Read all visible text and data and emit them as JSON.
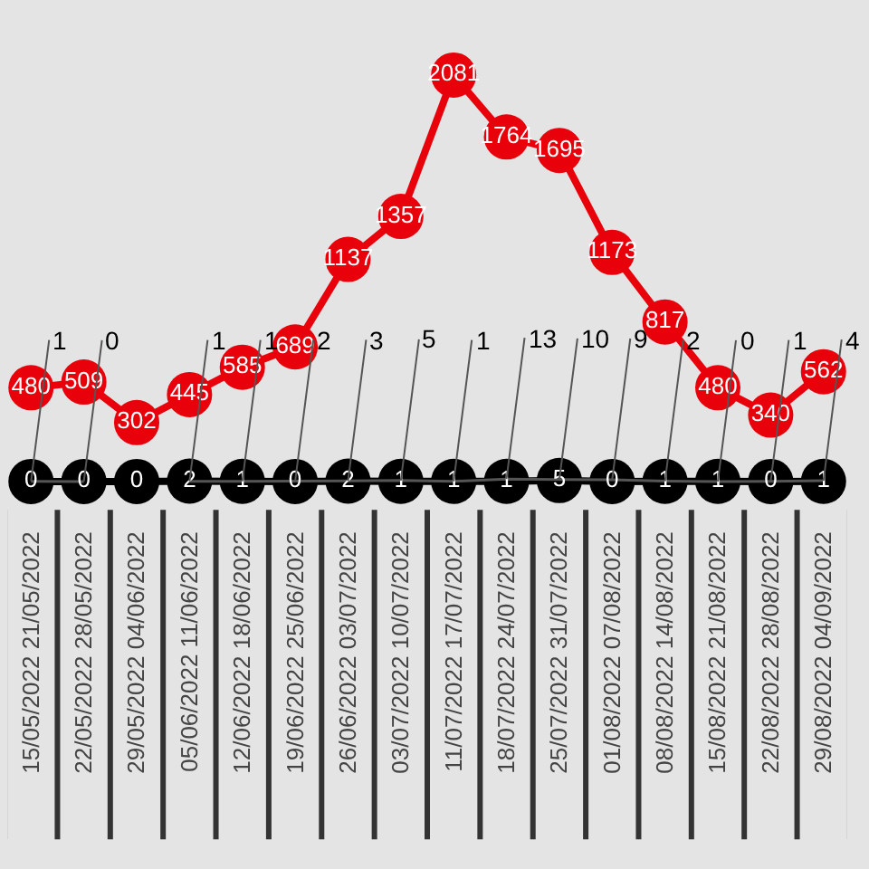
{
  "chart_data": {
    "type": "line",
    "data_labels": true,
    "marker": "circle",
    "grid": false,
    "legend": false,
    "tick_labels": "x",
    "categories": [
      "15/05/2022 21/05/2022",
      "22/05/2022 28/05/2022",
      "29/05/2022 04/06/2022",
      "05/06/2022 11/06/2022",
      "12/06/2022 18/06/2022",
      "19/06/2022 25/06/2022",
      "26/06/2022 03/07/2022",
      "03/07/2022 10/07/2022",
      "11/07/2022 17/07/2022",
      "18/07/2022 24/07/2022",
      "25/07/2022 31/07/2022",
      "01/08/2022 07/08/2022",
      "08/08/2022 14/08/2022",
      "15/08/2022 21/08/2022",
      "22/08/2022 28/08/2022",
      "29/08/2022 04/09/2022"
    ],
    "series": [
      {
        "color": "#e8000b",
        "values": [
          480,
          509,
          302,
          445,
          585,
          689,
          1137,
          1357,
          2081,
          1764,
          1695,
          1173,
          817,
          480,
          340,
          562
        ]
      },
      {
        "color": "#000000",
        "values": [
          0,
          0,
          0,
          2,
          1,
          0,
          2,
          1,
          1,
          1,
          5,
          0,
          1,
          1,
          0,
          1
        ]
      },
      {
        "color": "#555555",
        "marker": "none",
        "values": [
          1,
          0,
          null,
          1,
          1,
          2,
          3,
          5,
          1,
          13,
          10,
          9,
          2,
          0,
          1,
          4
        ],
        "value_labels": [
          "1",
          "0",
          null,
          "1",
          "1",
          "2",
          "3",
          "5",
          "1",
          "13",
          "10",
          "9",
          "2",
          "0",
          "1",
          "4"
        ]
      }
    ]
  }
}
